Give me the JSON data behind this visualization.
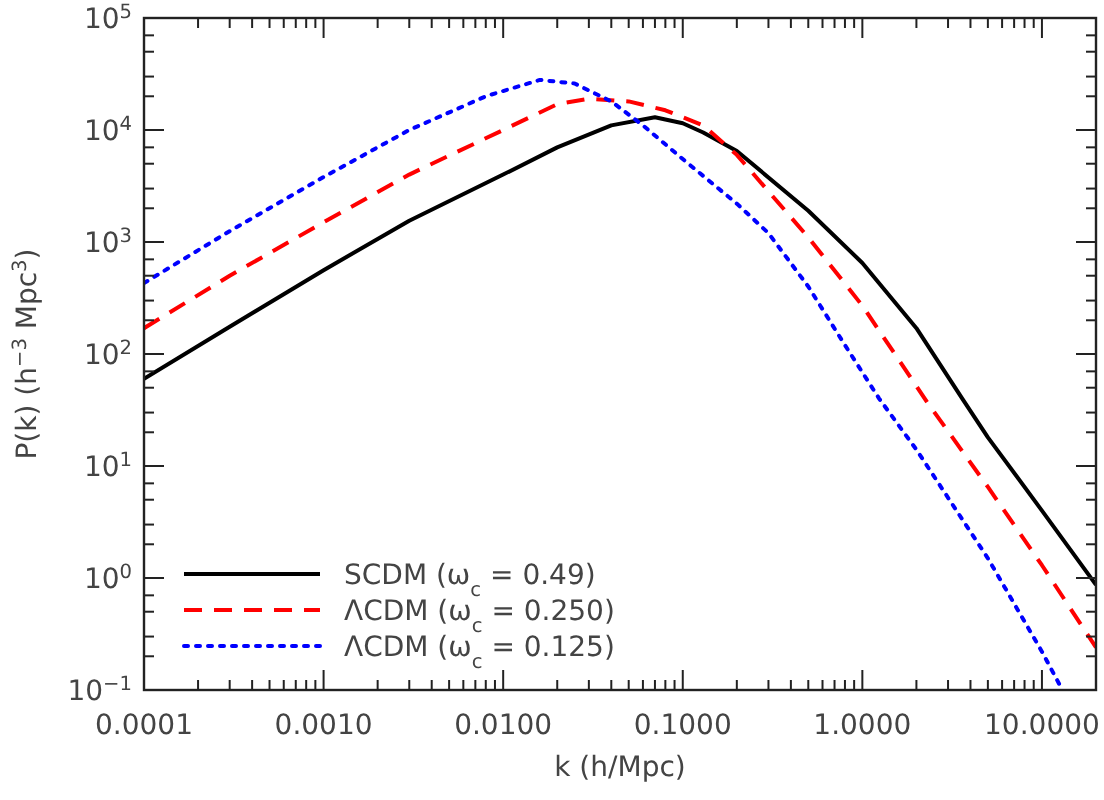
{
  "chart_data": {
    "type": "line",
    "xlabel": "k (h/Mpc)",
    "ylabel": "P(k) (h$^{−3}$ Mpc$^{3}$)",
    "log": "xy",
    "grid": false,
    "legend": "bottom left",
    "xlim": [
      0.0001,
      20
    ],
    "ylim": [
      0.1,
      100000
    ],
    "xticks": [
      {
        "value": 0.0001,
        "label": "0.0001"
      },
      {
        "value": 0.001,
        "label": "0.0010"
      },
      {
        "value": 0.01,
        "label": "0.0100"
      },
      {
        "value": 0.1,
        "label": "0.1000"
      },
      {
        "value": 1,
        "label": "1.0000"
      },
      {
        "value": 10,
        "label": "10.0000"
      },
      {
        "value": 0.0002,
        "label": null
      },
      {
        "value": 0.0003,
        "label": null
      },
      {
        "value": 0.0004,
        "label": null
      },
      {
        "value": 0.0005,
        "label": null
      },
      {
        "value": 0.0006,
        "label": null
      },
      {
        "value": 0.0007,
        "label": null
      },
      {
        "value": 0.0008,
        "label": null
      },
      {
        "value": 0.0009,
        "label": null
      },
      {
        "value": 0.002,
        "label": null
      },
      {
        "value": 0.003,
        "label": null
      },
      {
        "value": 0.004,
        "label": null
      },
      {
        "value": 0.005,
        "label": null
      },
      {
        "value": 0.006,
        "label": null
      },
      {
        "value": 0.007,
        "label": null
      },
      {
        "value": 0.008,
        "label": null
      },
      {
        "value": 0.009,
        "label": null
      },
      {
        "value": 0.02,
        "label": null
      },
      {
        "value": 0.03,
        "label": null
      },
      {
        "value": 0.04,
        "label": null
      },
      {
        "value": 0.05,
        "label": null
      },
      {
        "value": 0.06,
        "label": null
      },
      {
        "value": 0.07,
        "label": null
      },
      {
        "value": 0.08,
        "label": null
      },
      {
        "value": 0.09,
        "label": null
      },
      {
        "value": 0.2,
        "label": null
      },
      {
        "value": 0.3,
        "label": null
      },
      {
        "value": 0.4,
        "label": null
      },
      {
        "value": 0.5,
        "label": null
      },
      {
        "value": 0.6,
        "label": null
      },
      {
        "value": 0.7,
        "label": null
      },
      {
        "value": 0.8,
        "label": null
      },
      {
        "value": 0.9,
        "label": null
      },
      {
        "value": 2,
        "label": null
      },
      {
        "value": 3,
        "label": null
      },
      {
        "value": 4,
        "label": null
      },
      {
        "value": 5,
        "label": null
      },
      {
        "value": 6,
        "label": null
      },
      {
        "value": 7,
        "label": null
      },
      {
        "value": 8,
        "label": null
      },
      {
        "value": 9,
        "label": null
      },
      {
        "value": 20,
        "label": null
      }
    ],
    "yticks": [
      {
        "value": 0.1,
        "label": "10$^{−1}$"
      },
      {
        "value": 1,
        "label": "10$^{0}$"
      },
      {
        "value": 10,
        "label": "10$^{1}$"
      },
      {
        "value": 100,
        "label": "10$^{2}$"
      },
      {
        "value": 1000,
        "label": "10$^{3}$"
      },
      {
        "value": 10000,
        "label": "10$^{4}$"
      },
      {
        "value": 100000,
        "label": "10$^{5}$"
      },
      {
        "value": 0.2,
        "label": null
      },
      {
        "value": 0.3,
        "label": null
      },
      {
        "value": 0.5,
        "label": null
      },
      {
        "value": 0.7,
        "label": null
      },
      {
        "value": 2,
        "label": null
      },
      {
        "value": 3,
        "label": null
      },
      {
        "value": 5,
        "label": null
      },
      {
        "value": 7,
        "label": null
      },
      {
        "value": 20,
        "label": null
      },
      {
        "value": 30,
        "label": null
      },
      {
        "value": 50,
        "label": null
      },
      {
        "value": 70,
        "label": null
      },
      {
        "value": 200,
        "label": null
      },
      {
        "value": 300,
        "label": null
      },
      {
        "value": 500,
        "label": null
      },
      {
        "value": 700,
        "label": null
      },
      {
        "value": 2000,
        "label": null
      },
      {
        "value": 3000,
        "label": null
      },
      {
        "value": 5000,
        "label": null
      },
      {
        "value": 7000,
        "label": null
      },
      {
        "value": 20000,
        "label": null
      },
      {
        "value": 30000,
        "label": null
      },
      {
        "value": 50000,
        "label": null
      },
      {
        "value": 70000,
        "label": null
      }
    ],
    "series": [
      {
        "name": "SCDM (ω$_{c}$ = 0.49)",
        "color": "#000000",
        "line_style": "solid",
        "x": [
          0.0001,
          0.0003,
          0.001,
          0.003,
          0.01,
          0.02,
          0.04,
          0.07,
          0.1,
          0.13,
          0.2,
          0.5,
          1,
          2,
          3.6,
          5,
          10,
          20
        ],
        "values": [
          60,
          175,
          560,
          1550,
          4000,
          7000,
          11000,
          13000,
          11500,
          9500,
          6500,
          1900,
          650,
          170,
          40,
          18,
          4,
          0.87
        ]
      },
      {
        "name": "ΛCDM (ω$_{c}$ = 0.250)",
        "color": "#ff0000",
        "line_style": "dashed",
        "x": [
          0.0001,
          0.0003,
          0.001,
          0.003,
          0.01,
          0.02,
          0.03,
          0.05,
          0.08,
          0.13,
          0.2,
          0.5,
          1,
          2.3,
          5,
          10,
          20
        ],
        "values": [
          170,
          500,
          1500,
          4000,
          10000,
          17000,
          19000,
          18000,
          15000,
          11000,
          6000,
          1100,
          270,
          37,
          6.5,
          1.3,
          0.24
        ]
      },
      {
        "name": "ΛCDM (ω$_{c}$ = 0.125)",
        "color": "#0000ff",
        "line_style": "dotted",
        "x": [
          0.0001,
          0.0003,
          0.001,
          0.003,
          0.008,
          0.016,
          0.025,
          0.04,
          0.06,
          0.1,
          0.2,
          0.3,
          0.5,
          0.8,
          1.24,
          2,
          5,
          10,
          13
        ],
        "values": [
          430,
          1250,
          3800,
          10000,
          20000,
          28000,
          26000,
          18000,
          11000,
          5500,
          2200,
          1200,
          400,
          120,
          40,
          14,
          1.5,
          0.22,
          0.1
        ]
      }
    ]
  }
}
